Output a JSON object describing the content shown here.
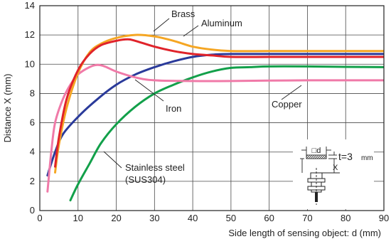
{
  "chart_data": {
    "type": "line",
    "xlabel": "Side length of sensing object: d (mm)",
    "ylabel": "Distance X (mm)",
    "xlim": [
      0,
      90
    ],
    "ylim": [
      0,
      14
    ],
    "xticks": [
      0,
      10,
      20,
      30,
      40,
      50,
      60,
      70,
      80,
      90
    ],
    "yticks": [
      0,
      2,
      4,
      6,
      8,
      10,
      12,
      14
    ],
    "grid": true,
    "series": [
      {
        "name": "Brass",
        "color": "#f5a623",
        "points": [
          [
            4,
            2.6
          ],
          [
            5,
            4.5
          ],
          [
            7,
            7.0
          ],
          [
            10,
            9.4
          ],
          [
            13,
            10.8
          ],
          [
            16,
            11.4
          ],
          [
            20,
            11.8
          ],
          [
            25,
            12.0
          ],
          [
            30,
            11.9
          ],
          [
            35,
            11.6
          ],
          [
            40,
            11.2
          ],
          [
            45,
            11.0
          ],
          [
            50,
            10.9
          ],
          [
            60,
            10.9
          ],
          [
            70,
            10.9
          ],
          [
            80,
            10.9
          ],
          [
            90,
            10.9
          ]
        ]
      },
      {
        "name": "Aluminum",
        "color": "#e0232a",
        "points": [
          [
            4,
            3.0
          ],
          [
            5,
            5.0
          ],
          [
            7,
            7.6
          ],
          [
            10,
            9.6
          ],
          [
            13,
            10.7
          ],
          [
            16,
            11.3
          ],
          [
            20,
            11.6
          ],
          [
            23,
            11.7
          ],
          [
            25,
            11.6
          ],
          [
            30,
            11.2
          ],
          [
            35,
            10.9
          ],
          [
            40,
            10.7
          ],
          [
            45,
            10.6
          ],
          [
            50,
            10.5
          ],
          [
            60,
            10.5
          ],
          [
            70,
            10.5
          ],
          [
            80,
            10.5
          ],
          [
            90,
            10.5
          ]
        ]
      },
      {
        "name": "Iron",
        "color": "#2a3a9a",
        "points": [
          [
            2,
            2.4
          ],
          [
            4,
            4.0
          ],
          [
            6,
            5.2
          ],
          [
            10,
            6.4
          ],
          [
            15,
            7.6
          ],
          [
            20,
            8.6
          ],
          [
            25,
            9.3
          ],
          [
            30,
            9.8
          ],
          [
            35,
            10.2
          ],
          [
            40,
            10.5
          ],
          [
            45,
            10.65
          ],
          [
            50,
            10.7
          ],
          [
            60,
            10.7
          ],
          [
            70,
            10.7
          ],
          [
            80,
            10.7
          ],
          [
            90,
            10.7
          ]
        ]
      },
      {
        "name": "Copper",
        "color": "#12a04a",
        "points": [
          [
            8,
            0.7
          ],
          [
            10,
            1.8
          ],
          [
            13,
            3.2
          ],
          [
            16,
            4.6
          ],
          [
            20,
            5.9
          ],
          [
            25,
            7.1
          ],
          [
            30,
            8.0
          ],
          [
            35,
            8.6
          ],
          [
            40,
            9.1
          ],
          [
            45,
            9.5
          ],
          [
            50,
            9.75
          ],
          [
            55,
            9.8
          ],
          [
            60,
            9.85
          ],
          [
            70,
            9.85
          ],
          [
            80,
            9.82
          ],
          [
            90,
            9.8
          ]
        ]
      },
      {
        "name": "Stainless steel (SUS304)",
        "color": "#f07aa8",
        "points": [
          [
            2,
            1.3
          ],
          [
            3,
            4.0
          ],
          [
            4,
            6.0
          ],
          [
            6,
            7.6
          ],
          [
            8,
            8.6
          ],
          [
            10,
            9.3
          ],
          [
            13,
            9.8
          ],
          [
            15,
            9.95
          ],
          [
            17,
            9.85
          ],
          [
            20,
            9.5
          ],
          [
            25,
            9.1
          ],
          [
            30,
            8.9
          ],
          [
            40,
            8.85
          ],
          [
            50,
            8.85
          ],
          [
            60,
            8.88
          ],
          [
            70,
            8.9
          ],
          [
            80,
            8.9
          ],
          [
            90,
            8.9
          ]
        ]
      }
    ],
    "labels": [
      {
        "series": "Brass",
        "lines": [
          "Brass"
        ]
      },
      {
        "series": "Aluminum",
        "lines": [
          "Aluminum"
        ]
      },
      {
        "series": "Iron",
        "lines": [
          "Iron"
        ]
      },
      {
        "series": "Copper",
        "lines": [
          "Copper"
        ]
      },
      {
        "series": "Stainless steel (SUS304)",
        "lines": [
          "Stainless steel",
          "(SUS304)"
        ]
      }
    ],
    "inset": {
      "d_label": "□d",
      "x_label": "X",
      "t_label": "t=3",
      "t_unit": "mm"
    }
  }
}
